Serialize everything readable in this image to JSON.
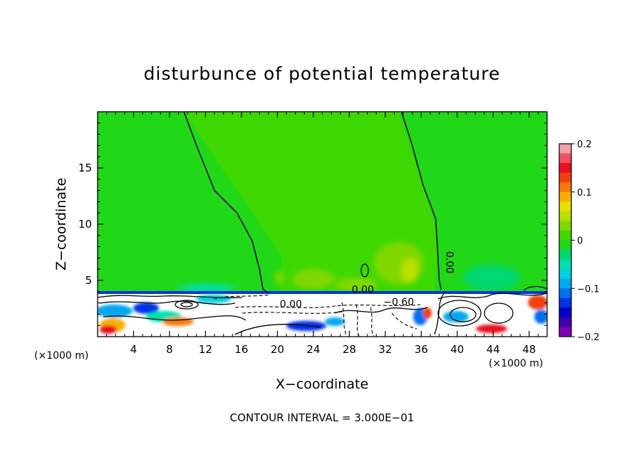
{
  "chart_data": {
    "type": "heatmap",
    "title": "disturbunce of potential temperature",
    "xlabel": "X−coordinate",
    "ylabel": "Z−coordinate",
    "x_unit": "(×1000 m)",
    "y_unit": "(×1000 m)",
    "xlim": [
      0,
      50
    ],
    "ylim": [
      0,
      20
    ],
    "x_ticks": [
      {
        "value": 4,
        "label": "4"
      },
      {
        "value": 8,
        "label": "8"
      },
      {
        "value": 12,
        "label": "12"
      },
      {
        "value": 16,
        "label": "16"
      },
      {
        "value": 20,
        "label": "20"
      },
      {
        "value": 24,
        "label": "24"
      },
      {
        "value": 28,
        "label": "28"
      },
      {
        "value": 32,
        "label": "32"
      },
      {
        "value": 36,
        "label": "36"
      },
      {
        "value": 40,
        "label": "40"
      },
      {
        "value": 44,
        "label": "44"
      },
      {
        "value": 48,
        "label": "48"
      }
    ],
    "y_ticks": [
      {
        "value": 5,
        "label": "5"
      },
      {
        "value": 10,
        "label": "10"
      },
      {
        "value": 15,
        "label": "15"
      }
    ],
    "colorbar": {
      "min": -0.2,
      "max": 0.2,
      "tick_values": [
        0.2,
        0.1,
        0,
        -0.1,
        -0.2
      ],
      "tick_labels": [
        "0.2",
        "0.1",
        "0",
        "−0.1",
        "−0.2"
      ],
      "colors": [
        "#f4a0a8",
        "#f05060",
        "#e81020",
        "#f04010",
        "#f87810",
        "#f8b000",
        "#e8e000",
        "#b8e000",
        "#80d800",
        "#40d800",
        "#20d818",
        "#00d870",
        "#00e0b0",
        "#00d0e0",
        "#00a8f0",
        "#0070f0",
        "#0030e8",
        "#0000c8",
        "#4000b0",
        "#8000b0"
      ]
    },
    "contour_labels": [
      {
        "x": 38.8,
        "z": 6.6,
        "text": "0.00",
        "rotation": 90
      },
      {
        "x": 29.5,
        "z": 3.9,
        "text": "0.00",
        "rotation": 0
      },
      {
        "x": 21.5,
        "z": 2.6,
        "text": "0.00",
        "rotation": 0
      },
      {
        "x": 33.5,
        "z": 2.8,
        "text": "−0.60",
        "rotation": 0
      }
    ],
    "zero_contours": [
      [
        [
          9.6,
          20
        ],
        [
          11.0,
          17
        ],
        [
          13.0,
          13
        ],
        [
          15.5,
          11
        ],
        [
          17.2,
          8.5
        ],
        [
          18.0,
          6.0
        ],
        [
          18.4,
          4.2
        ],
        [
          19.0,
          3.9
        ]
      ],
      [
        [
          33.8,
          20
        ],
        [
          35.0,
          17
        ],
        [
          36.2,
          13.5
        ],
        [
          37.6,
          10.5
        ],
        [
          37.8,
          8.0
        ],
        [
          38.0,
          5.0
        ],
        [
          38.2,
          4.2
        ]
      ]
    ],
    "contour_interval_text": "CONTOUR INTERVAL = 3.000E−01"
  }
}
